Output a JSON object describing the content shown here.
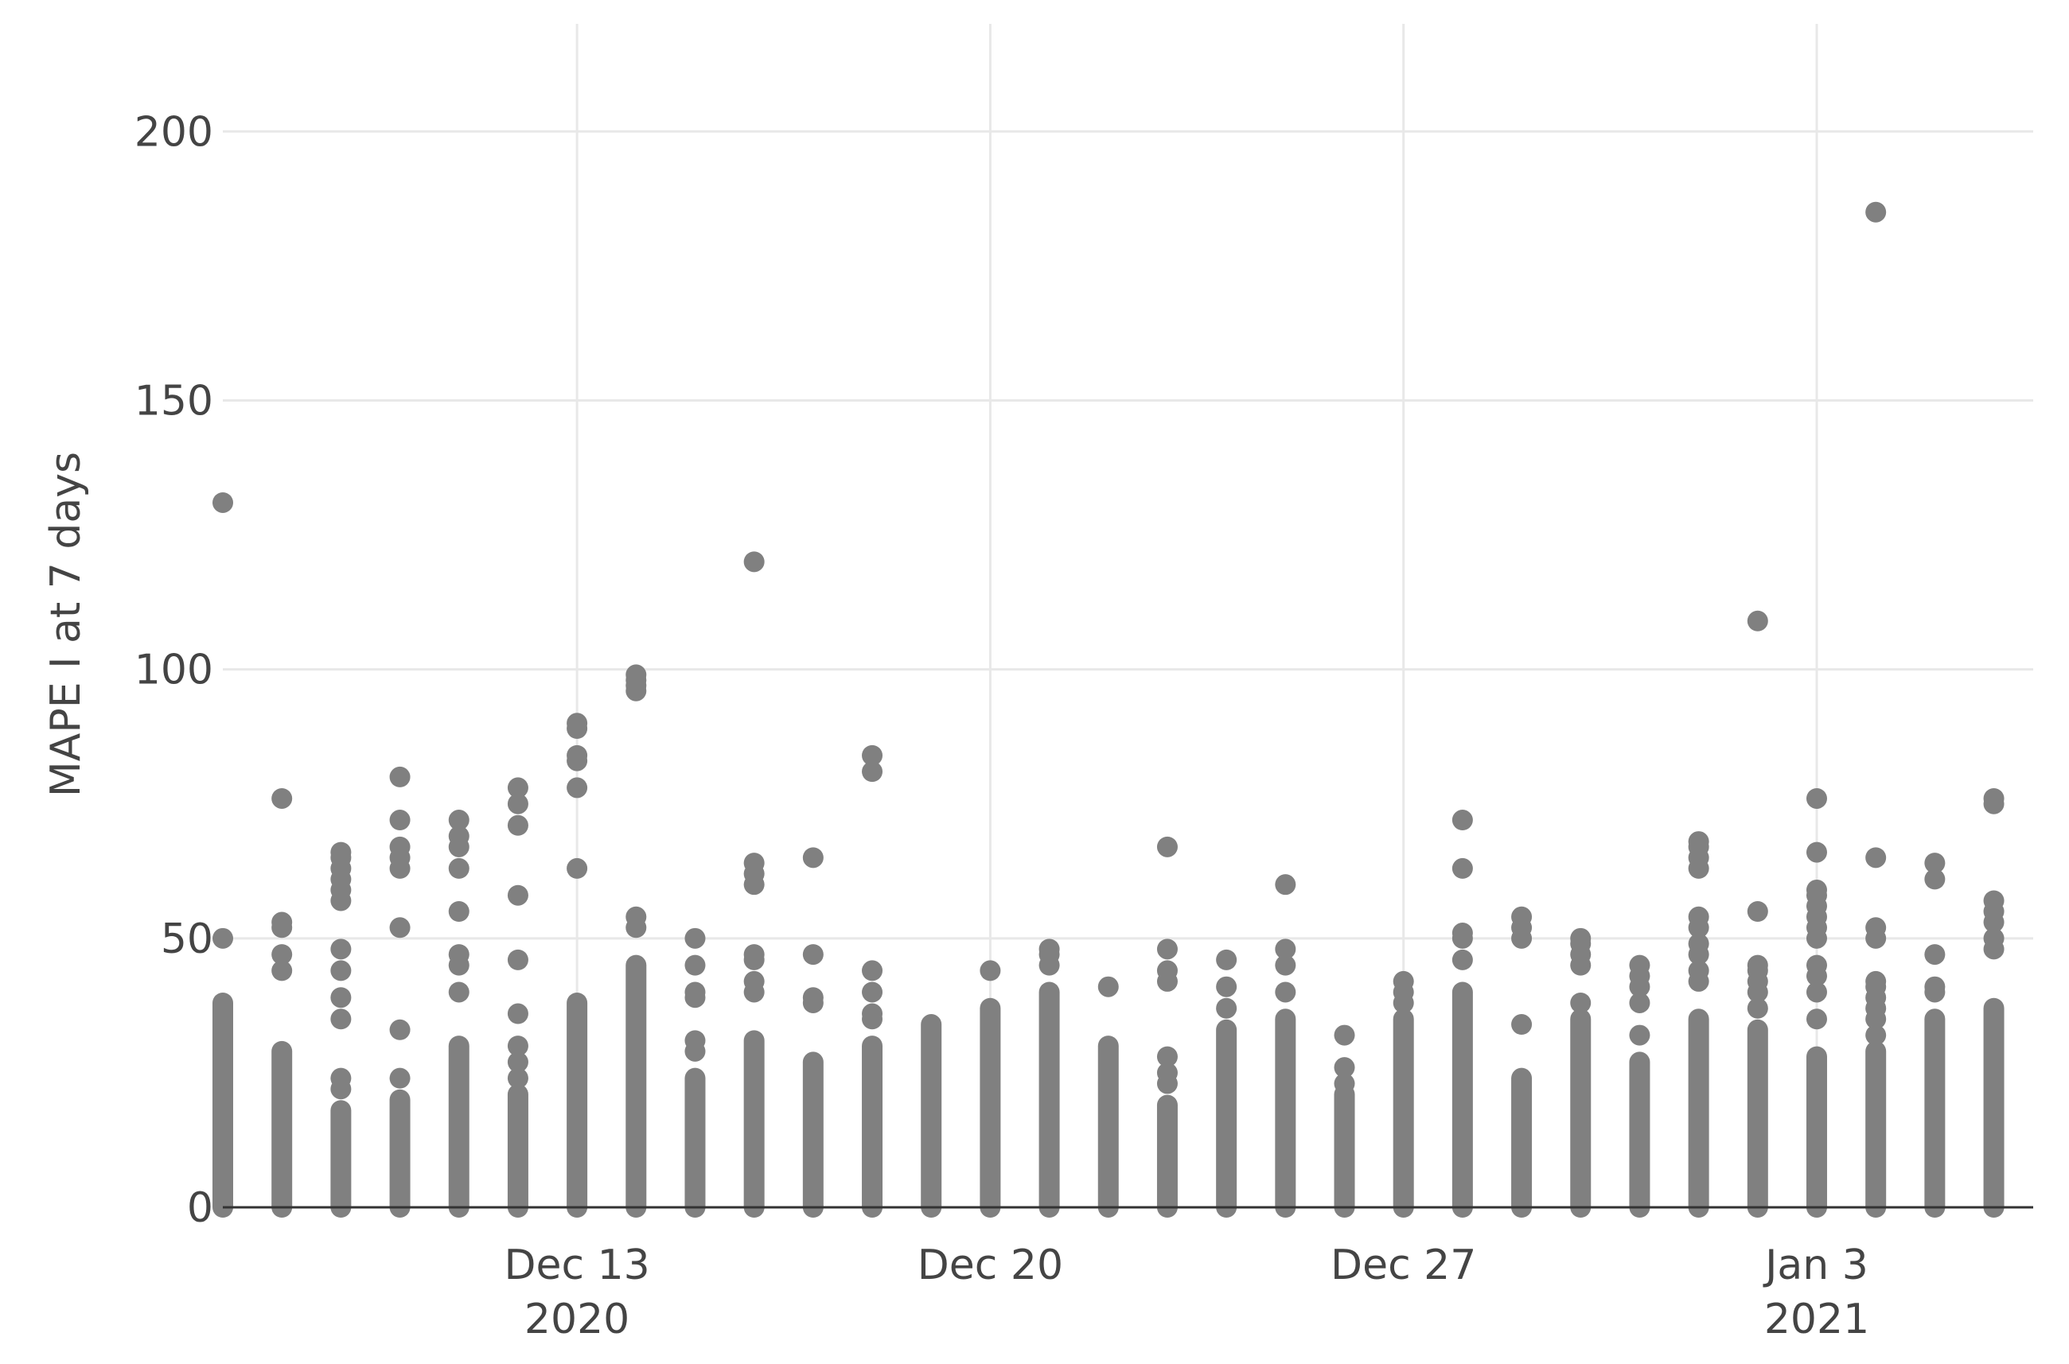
{
  "chart_data": {
    "type": "scatter",
    "title": "",
    "xlabel": "",
    "ylabel": "MAPE I at 7 days",
    "ylim": [
      0,
      220
    ],
    "xlim": [
      "2020-12-07T00:00",
      "2021-01-06T16:00"
    ],
    "x_ticks": [
      {
        "date": "2020-12-13",
        "label": "Dec 13",
        "sublabel": "2020"
      },
      {
        "date": "2020-12-20",
        "label": "Dec 20",
        "sublabel": ""
      },
      {
        "date": "2020-12-27",
        "label": "Dec 27",
        "sublabel": ""
      },
      {
        "date": "2021-01-03",
        "label": "Jan 3",
        "sublabel": "2021"
      }
    ],
    "y_ticks": [
      0,
      50,
      100,
      150,
      200
    ],
    "grid": true,
    "marker_color": "#808080",
    "grid_color": "#e8e8e8",
    "zero_line_color": "#333333",
    "text_color": "#444444",
    "points_by_day": [
      {
        "date": "2020-12-07",
        "bar_max": 38,
        "outliers": [
          50,
          131
        ]
      },
      {
        "date": "2020-12-08",
        "bar_max": 29,
        "outliers": [
          44,
          47,
          52,
          53,
          76
        ]
      },
      {
        "date": "2020-12-09",
        "bar_max": 18,
        "outliers": [
          22,
          24,
          35,
          39,
          44,
          48,
          57,
          59,
          61,
          63,
          65,
          66
        ]
      },
      {
        "date": "2020-12-10",
        "bar_max": 20,
        "outliers": [
          24,
          33,
          52,
          63,
          65,
          67,
          72,
          80
        ]
      },
      {
        "date": "2020-12-11",
        "bar_max": 30,
        "outliers": [
          40,
          45,
          47,
          55,
          63,
          67,
          69,
          72
        ]
      },
      {
        "date": "2020-12-12",
        "bar_max": 21,
        "outliers": [
          24,
          27,
          30,
          36,
          46,
          58,
          71,
          75,
          78
        ]
      },
      {
        "date": "2020-12-13",
        "bar_max": 38,
        "outliers": [
          63,
          78,
          83,
          84,
          89,
          90
        ]
      },
      {
        "date": "2020-12-14",
        "bar_max": 45,
        "outliers": [
          52,
          54,
          96,
          97,
          98,
          99
        ]
      },
      {
        "date": "2020-12-15",
        "bar_max": 24,
        "outliers": [
          29,
          31,
          39,
          40,
          45,
          50
        ]
      },
      {
        "date": "2020-12-16",
        "bar_max": 31,
        "outliers": [
          40,
          42,
          46,
          47,
          60,
          62,
          64,
          120
        ]
      },
      {
        "date": "2020-12-17",
        "bar_max": 27,
        "outliers": [
          38,
          39,
          47,
          65
        ]
      },
      {
        "date": "2020-12-18",
        "bar_max": 30,
        "outliers": [
          35,
          36,
          40,
          44,
          81,
          84
        ]
      },
      {
        "date": "2020-12-19",
        "bar_max": 34,
        "outliers": []
      },
      {
        "date": "2020-12-20",
        "bar_max": 37,
        "outliers": [
          44
        ]
      },
      {
        "date": "2020-12-21",
        "bar_max": 40,
        "outliers": [
          45,
          47,
          48
        ]
      },
      {
        "date": "2020-12-22",
        "bar_max": 30,
        "outliers": [
          41
        ]
      },
      {
        "date": "2020-12-23",
        "bar_max": 19,
        "outliers": [
          23,
          25,
          28,
          42,
          44,
          48,
          67
        ]
      },
      {
        "date": "2020-12-24",
        "bar_max": 33,
        "outliers": [
          37,
          41,
          46
        ]
      },
      {
        "date": "2020-12-25",
        "bar_max": 35,
        "outliers": [
          40,
          45,
          48,
          60
        ]
      },
      {
        "date": "2020-12-26",
        "bar_max": 21,
        "outliers": [
          23,
          26,
          32
        ]
      },
      {
        "date": "2020-12-27",
        "bar_max": 35,
        "outliers": [
          38,
          40,
          42
        ]
      },
      {
        "date": "2020-12-28",
        "bar_max": 40,
        "outliers": [
          46,
          50,
          51,
          63,
          72
        ]
      },
      {
        "date": "2020-12-29",
        "bar_max": 24,
        "outliers": [
          34,
          50,
          52,
          54
        ]
      },
      {
        "date": "2020-12-30",
        "bar_max": 35,
        "outliers": [
          38,
          45,
          47,
          49,
          50
        ]
      },
      {
        "date": "2020-12-31",
        "bar_max": 27,
        "outliers": [
          32,
          38,
          41,
          43,
          45
        ]
      },
      {
        "date": "2021-01-01",
        "bar_max": 35,
        "outliers": [
          42,
          44,
          47,
          49,
          52,
          54,
          63,
          65,
          67,
          68
        ]
      },
      {
        "date": "2021-01-02",
        "bar_max": 33,
        "outliers": [
          37,
          40,
          42,
          44,
          45,
          55,
          109
        ]
      },
      {
        "date": "2021-01-03",
        "bar_max": 28,
        "outliers": [
          35,
          40,
          43,
          45,
          50,
          52,
          54,
          56,
          58,
          59,
          66,
          76
        ]
      },
      {
        "date": "2021-01-04",
        "bar_max": 29,
        "outliers": [
          32,
          35,
          37,
          39,
          41,
          42,
          50,
          52,
          65,
          185
        ]
      },
      {
        "date": "2021-01-05",
        "bar_max": 35,
        "outliers": [
          40,
          41,
          47,
          61,
          64
        ]
      },
      {
        "date": "2021-01-06",
        "bar_max": 37,
        "outliers": [
          48,
          50,
          53,
          55,
          57,
          75,
          76
        ]
      }
    ]
  }
}
